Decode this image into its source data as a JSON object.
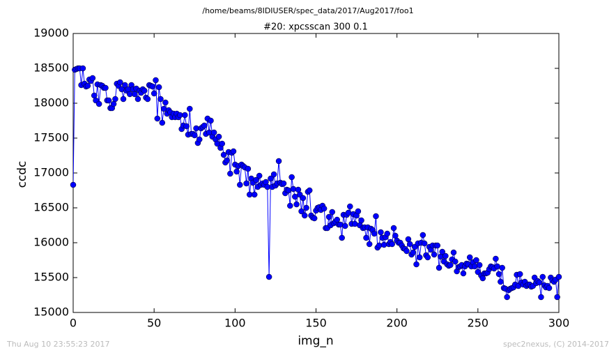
{
  "header": "/home/beams/8IDIUSER/spec_data/2017/Aug2017/foo1",
  "footer_left": "Thu Aug 10 23:55:23 2017",
  "footer_right": "spec2nexus, (C) 2014-2017",
  "chart_data": {
    "type": "line",
    "title": "#20: xpcsscan 300 0.1",
    "x_label": "img_n",
    "y_label": "ccdc",
    "color": "#0000ff",
    "xlim": [
      0,
      300
    ],
    "xticks": [
      0,
      50,
      100,
      150,
      200,
      250,
      300
    ],
    "ylim": [
      15000,
      19000
    ],
    "yticks": [
      15000,
      15500,
      16000,
      16500,
      17000,
      17500,
      18000,
      18500,
      19000
    ],
    "x": [
      0,
      1,
      2,
      3,
      4,
      5,
      6,
      7,
      8,
      9,
      10,
      11,
      12,
      13,
      14,
      15,
      16,
      17,
      18,
      19,
      20,
      21,
      22,
      23,
      24,
      25,
      26,
      27,
      28,
      29,
      30,
      31,
      32,
      33,
      34,
      35,
      36,
      37,
      38,
      39,
      40,
      41,
      42,
      43,
      44,
      45,
      46,
      47,
      48,
      49,
      50,
      51,
      52,
      53,
      54,
      55,
      56,
      57,
      58,
      59,
      60,
      61,
      62,
      63,
      64,
      65,
      66,
      67,
      68,
      69,
      70,
      71,
      72,
      73,
      74,
      75,
      76,
      77,
      78,
      79,
      80,
      81,
      82,
      83,
      84,
      85,
      86,
      87,
      88,
      89,
      90,
      91,
      92,
      93,
      94,
      95,
      96,
      97,
      98,
      99,
      100,
      101,
      102,
      103,
      104,
      105,
      106,
      107,
      108,
      109,
      110,
      111,
      112,
      113,
      114,
      115,
      116,
      117,
      118,
      119,
      120,
      121,
      122,
      123,
      124,
      125,
      126,
      127,
      128,
      129,
      130,
      131,
      132,
      133,
      134,
      135,
      136,
      137,
      138,
      139,
      140,
      141,
      142,
      143,
      144,
      145,
      146,
      147,
      148,
      149,
      150,
      151,
      152,
      153,
      154,
      155,
      156,
      157,
      158,
      159,
      160,
      161,
      162,
      163,
      164,
      165,
      166,
      167,
      168,
      169,
      170,
      171,
      172,
      173,
      174,
      175,
      176,
      177,
      178,
      179,
      180,
      181,
      182,
      183,
      184,
      185,
      186,
      187,
      188,
      189,
      190,
      191,
      192,
      193,
      194,
      195,
      196,
      197,
      198,
      199,
      200,
      201,
      202,
      203,
      204,
      205,
      206,
      207,
      208,
      209,
      210,
      211,
      212,
      213,
      214,
      215,
      216,
      217,
      218,
      219,
      220,
      221,
      222,
      223,
      224,
      225,
      226,
      227,
      228,
      229,
      230,
      231,
      232,
      233,
      234,
      235,
      236,
      237,
      238,
      239,
      240,
      241,
      242,
      243,
      244,
      245,
      246,
      247,
      248,
      249,
      250,
      251,
      252,
      253,
      254,
      255,
      256,
      257,
      258,
      259,
      260,
      261,
      262,
      263,
      264,
      265,
      266,
      267,
      268,
      269,
      270,
      271,
      272,
      273,
      274,
      275,
      276,
      277,
      278,
      279,
      280,
      281,
      282,
      283,
      284,
      285,
      286,
      287,
      288,
      289,
      290,
      291,
      292,
      293,
      294,
      295,
      296,
      297,
      298,
      299,
      300
    ],
    "values": [
      16830,
      18480,
      18490,
      18500,
      18500,
      18260,
      18500,
      18280,
      18240,
      18250,
      18340,
      18320,
      18360,
      18110,
      18040,
      18270,
      17990,
      18260,
      18250,
      18220,
      18220,
      18040,
      18040,
      17930,
      17930,
      17990,
      18060,
      18280,
      18250,
      18300,
      18200,
      18060,
      18260,
      18180,
      18200,
      18130,
      18260,
      18200,
      18130,
      18210,
      18060,
      18180,
      18150,
      18200,
      18180,
      18080,
      18060,
      18260,
      18250,
      18240,
      18140,
      18330,
      17780,
      18230,
      18060,
      17720,
      17920,
      18010,
      17850,
      17900,
      17870,
      17800,
      17850,
      17800,
      17850,
      17800,
      17830,
      17630,
      17680,
      17830,
      17670,
      17550,
      17920,
      17560,
      17560,
      17540,
      17640,
      17430,
      17480,
      17640,
      17660,
      17680,
      17560,
      17780,
      17580,
      17750,
      17520,
      17580,
      17480,
      17420,
      17520,
      17360,
      17420,
      17260,
      17150,
      17180,
      17300,
      16990,
      17290,
      17310,
      17120,
      17020,
      17100,
      16830,
      17120,
      17100,
      17080,
      16850,
      17060,
      16690,
      16920,
      16860,
      16690,
      16900,
      16800,
      16960,
      16830,
      16850,
      16830,
      16870,
      16800,
      15510,
      16920,
      16800,
      16980,
      16820,
      16850,
      17170,
      16860,
      16840,
      16850,
      16710,
      16760,
      16750,
      16530,
      16940,
      16770,
      16660,
      16550,
      16760,
      16690,
      16450,
      16640,
      16390,
      16500,
      16730,
      16750,
      16390,
      16360,
      16350,
      16460,
      16500,
      16510,
      16470,
      16530,
      16490,
      16210,
      16210,
      16370,
      16250,
      16440,
      16280,
      16300,
      16330,
      16260,
      16260,
      16070,
      16400,
      16240,
      16400,
      16430,
      16520,
      16270,
      16410,
      16270,
      16390,
      16450,
      16250,
      16320,
      16210,
      16220,
      16070,
      16220,
      15980,
      16200,
      16180,
      16130,
      16380,
      15930,
      15960,
      16150,
      16070,
      15970,
      16080,
      16130,
      15980,
      16010,
      15980,
      16210,
      16100,
      16030,
      16000,
      16000,
      15960,
      15920,
      15910,
      15880,
      16050,
      15980,
      15830,
      15860,
      15940,
      15690,
      15990,
      15790,
      16000,
      16110,
      15990,
      15820,
      15790,
      15940,
      15900,
      15960,
      15830,
      15960,
      15960,
      15640,
      15800,
      15870,
      15730,
      15810,
      15690,
      15670,
      15680,
      15760,
      15860,
      15730,
      15590,
      15650,
      15660,
      15680,
      15560,
      15660,
      15700,
      15690,
      15790,
      15660,
      15720,
      15660,
      15750,
      15580,
      15680,
      15530,
      15490,
      15560,
      15560,
      15570,
      15620,
      15660,
      15650,
      15630,
      15770,
      15660,
      15550,
      15440,
      15640,
      15350,
      15340,
      15220,
      15320,
      15340,
      15350,
      15360,
      15400,
      15540,
      15380,
      15550,
      15430,
      15400,
      15440,
      15380,
      15400,
      15400,
      15370,
      15380,
      15500,
      15420,
      15450,
      15430,
      15220,
      15510,
      15390,
      15360,
      15380,
      15350,
      15500,
      15460,
      15440,
      15470,
      15220,
      15510
    ]
  }
}
